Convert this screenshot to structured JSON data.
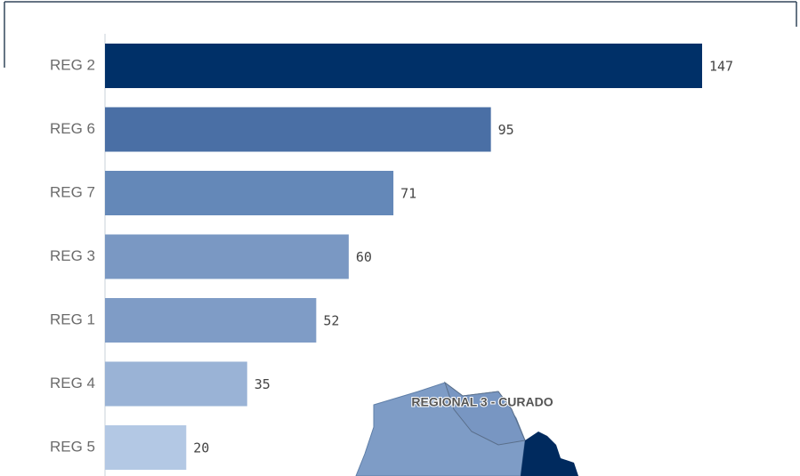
{
  "chart_data": {
    "type": "bar",
    "orientation": "horizontal",
    "categories": [
      "REG 2",
      "REG 6",
      "REG 7",
      "REG 3",
      "REG 1",
      "REG 4",
      "REG 5"
    ],
    "values": [
      147,
      95,
      71,
      60,
      52,
      35,
      20
    ],
    "colors": [
      "#003068",
      "#4a6fa5",
      "#6488b8",
      "#7a98c3",
      "#7f9cc6",
      "#9ab3d6",
      "#b3c8e4"
    ],
    "annotations": [
      "REGIONAL 3 - CURADO"
    ]
  }
}
